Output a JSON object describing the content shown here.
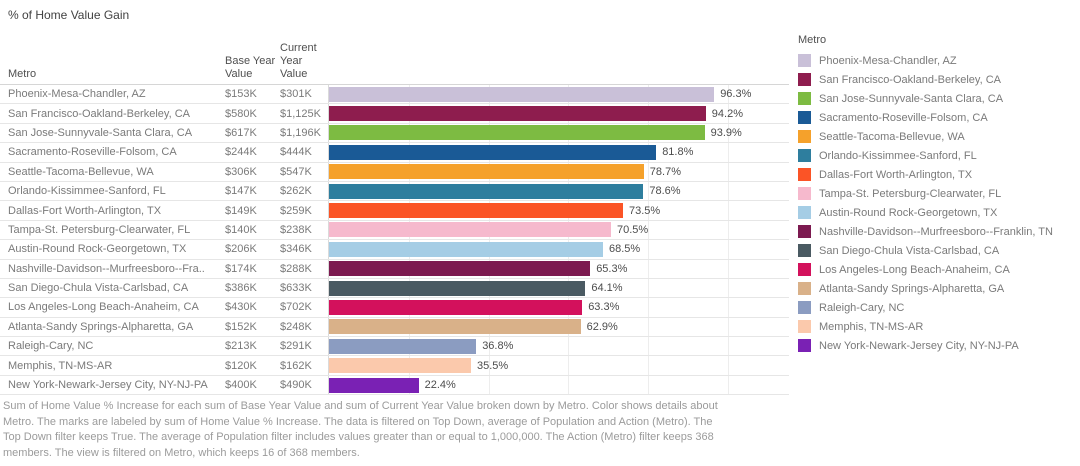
{
  "title": "% of Home Value Gain",
  "table": {
    "headers": {
      "metro": "Metro",
      "base": "Base Year Value",
      "current": "Current Year Value"
    }
  },
  "metros": [
    {
      "label": "Phoenix-Mesa-Chandler, AZ",
      "legend_label": "Phoenix-Mesa-Chandler, AZ",
      "base": "$153K",
      "current": "$301K",
      "pct": 96.3,
      "pct_label": "96.3%",
      "color": "#c9c0d8"
    },
    {
      "label": "San Francisco-Oakland-Berkeley, CA",
      "legend_label": "San Francisco-Oakland-Berkeley, CA",
      "base": "$580K",
      "current": "$1,125K",
      "pct": 94.2,
      "pct_label": "94.2%",
      "color": "#8e1d4e"
    },
    {
      "label": "San Jose-Sunnyvale-Santa Clara, CA",
      "legend_label": "San Jose-Sunnyvale-Santa Clara, CA",
      "base": "$617K",
      "current": "$1,196K",
      "pct": 93.9,
      "pct_label": "93.9%",
      "color": "#7dbb42"
    },
    {
      "label": "Sacramento-Roseville-Folsom, CA",
      "legend_label": "Sacramento-Roseville-Folsom, CA",
      "base": "$244K",
      "current": "$444K",
      "pct": 81.8,
      "pct_label": "81.8%",
      "color": "#1a5a96"
    },
    {
      "label": "Seattle-Tacoma-Bellevue, WA",
      "legend_label": "Seattle-Tacoma-Bellevue, WA",
      "base": "$306K",
      "current": "$547K",
      "pct": 78.7,
      "pct_label": "78.7%",
      "color": "#f5a12b"
    },
    {
      "label": "Orlando-Kissimmee-Sanford, FL",
      "legend_label": "Orlando-Kissimmee-Sanford, FL",
      "base": "$147K",
      "current": "$262K",
      "pct": 78.6,
      "pct_label": "78.6%",
      "color": "#2e7e9e"
    },
    {
      "label": "Dallas-Fort Worth-Arlington, TX",
      "legend_label": "Dallas-Fort Worth-Arlington, TX",
      "base": "$149K",
      "current": "$259K",
      "pct": 73.5,
      "pct_label": "73.5%",
      "color": "#fb5426"
    },
    {
      "label": "Tampa-St. Petersburg-Clearwater, FL",
      "legend_label": "Tampa-St. Petersburg-Clearwater, FL",
      "base": "$140K",
      "current": "$238K",
      "pct": 70.5,
      "pct_label": "70.5%",
      "color": "#f6b9cd"
    },
    {
      "label": "Austin-Round Rock-Georgetown, TX",
      "legend_label": "Austin-Round Rock-Georgetown, TX",
      "base": "$206K",
      "current": "$346K",
      "pct": 68.5,
      "pct_label": "68.5%",
      "color": "#a5cde5"
    },
    {
      "label": "Nashville-Davidson--Murfreesboro--Fra..",
      "legend_label": "Nashville-Davidson--Murfreesboro--Franklin, TN",
      "base": "$174K",
      "current": "$288K",
      "pct": 65.3,
      "pct_label": "65.3%",
      "color": "#7c1a50"
    },
    {
      "label": "San Diego-Chula Vista-Carlsbad, CA",
      "legend_label": "San Diego-Chula Vista-Carlsbad, CA",
      "base": "$386K",
      "current": "$633K",
      "pct": 64.1,
      "pct_label": "64.1%",
      "color": "#4a5a62"
    },
    {
      "label": "Los Angeles-Long Beach-Anaheim, CA",
      "legend_label": "Los Angeles-Long Beach-Anaheim, CA",
      "base": "$430K",
      "current": "$702K",
      "pct": 63.3,
      "pct_label": "63.3%",
      "color": "#d3115c"
    },
    {
      "label": "Atlanta-Sandy Springs-Alpharetta, GA",
      "legend_label": "Atlanta-Sandy Springs-Alpharetta, GA",
      "base": "$152K",
      "current": "$248K",
      "pct": 62.9,
      "pct_label": "62.9%",
      "color": "#d9b189"
    },
    {
      "label": "Raleigh-Cary, NC",
      "legend_label": "Raleigh-Cary, NC",
      "base": "$213K",
      "current": "$291K",
      "pct": 36.8,
      "pct_label": "36.8%",
      "color": "#8b9cc1"
    },
    {
      "label": "Memphis, TN-MS-AR",
      "legend_label": "Memphis, TN-MS-AR",
      "base": "$120K",
      "current": "$162K",
      "pct": 35.5,
      "pct_label": "35.5%",
      "color": "#fbc9ac"
    },
    {
      "label": "New York-Newark-Jersey City, NY-NJ-PA",
      "legend_label": "New York-Newark-Jersey City, NY-NJ-PA",
      "base": "$400K",
      "current": "$490K",
      "pct": 22.4,
      "pct_label": "22.4%",
      "color": "#7a21b4"
    }
  ],
  "legend": {
    "title": "Metro"
  },
  "caption": {
    "lines": [
      "Sum of Home Value % Increase for each sum of Base Year Value and sum of Current Year Value broken down by Metro.  Color shows details about",
      "Metro.  The marks are labeled by sum of Home Value % Increase. The data is filtered on Top Down, average of Population and Action (Metro). The",
      "Top Down filter keeps True. The average of Population filter includes values greater than or equal to 1,000,000. The Action (Metro) filter keeps 368",
      "members. The view is filtered on Metro, which keeps 16 of 368 members."
    ]
  },
  "chart_data": {
    "type": "bar",
    "orientation": "horizontal",
    "title": "% of Home Value Gain",
    "categories": [
      "Phoenix-Mesa-Chandler, AZ",
      "San Francisco-Oakland-Berkeley, CA",
      "San Jose-Sunnyvale-Santa Clara, CA",
      "Sacramento-Roseville-Folsom, CA",
      "Seattle-Tacoma-Bellevue, WA",
      "Orlando-Kissimmee-Sanford, FL",
      "Dallas-Fort Worth-Arlington, TX",
      "Tampa-St. Petersburg-Clearwater, FL",
      "Austin-Round Rock-Georgetown, TX",
      "Nashville-Davidson--Murfreesboro--Franklin, TN",
      "San Diego-Chula Vista-Carlsbad, CA",
      "Los Angeles-Long Beach-Anaheim, CA",
      "Atlanta-Sandy Springs-Alpharetta, GA",
      "Raleigh-Cary, NC",
      "Memphis, TN-MS-AR",
      "New York-Newark-Jersey City, NY-NJ-PA"
    ],
    "series": [
      {
        "name": "Home Value % Increase",
        "values": [
          96.3,
          94.2,
          93.9,
          81.8,
          78.7,
          78.6,
          73.5,
          70.5,
          68.5,
          65.3,
          64.1,
          63.3,
          62.9,
          36.8,
          35.5,
          22.4
        ]
      },
      {
        "name": "Base Year Value",
        "values": [
          "$153K",
          "$580K",
          "$617K",
          "$244K",
          "$306K",
          "$147K",
          "$149K",
          "$140K",
          "$206K",
          "$174K",
          "$386K",
          "$430K",
          "$152K",
          "$213K",
          "$120K",
          "$400K"
        ]
      },
      {
        "name": "Current Year Value",
        "values": [
          "$301K",
          "$1,125K",
          "$1,196K",
          "$444K",
          "$547K",
          "$262K",
          "$259K",
          "$238K",
          "$346K",
          "$288K",
          "$633K",
          "$702K",
          "$248K",
          "$291K",
          "$162K",
          "$490K"
        ]
      }
    ],
    "colors": [
      "#c9c0d8",
      "#8e1d4e",
      "#7dbb42",
      "#1a5a96",
      "#f5a12b",
      "#2e7e9e",
      "#fb5426",
      "#f6b9cd",
      "#a5cde5",
      "#7c1a50",
      "#4a5a62",
      "#d3115c",
      "#d9b189",
      "#8b9cc1",
      "#fbc9ac",
      "#7a21b4"
    ],
    "xlim": [
      0,
      115
    ],
    "gridline_interval": 20,
    "grid": true,
    "legend_position": "right",
    "value_labels": "end-of-bar"
  }
}
